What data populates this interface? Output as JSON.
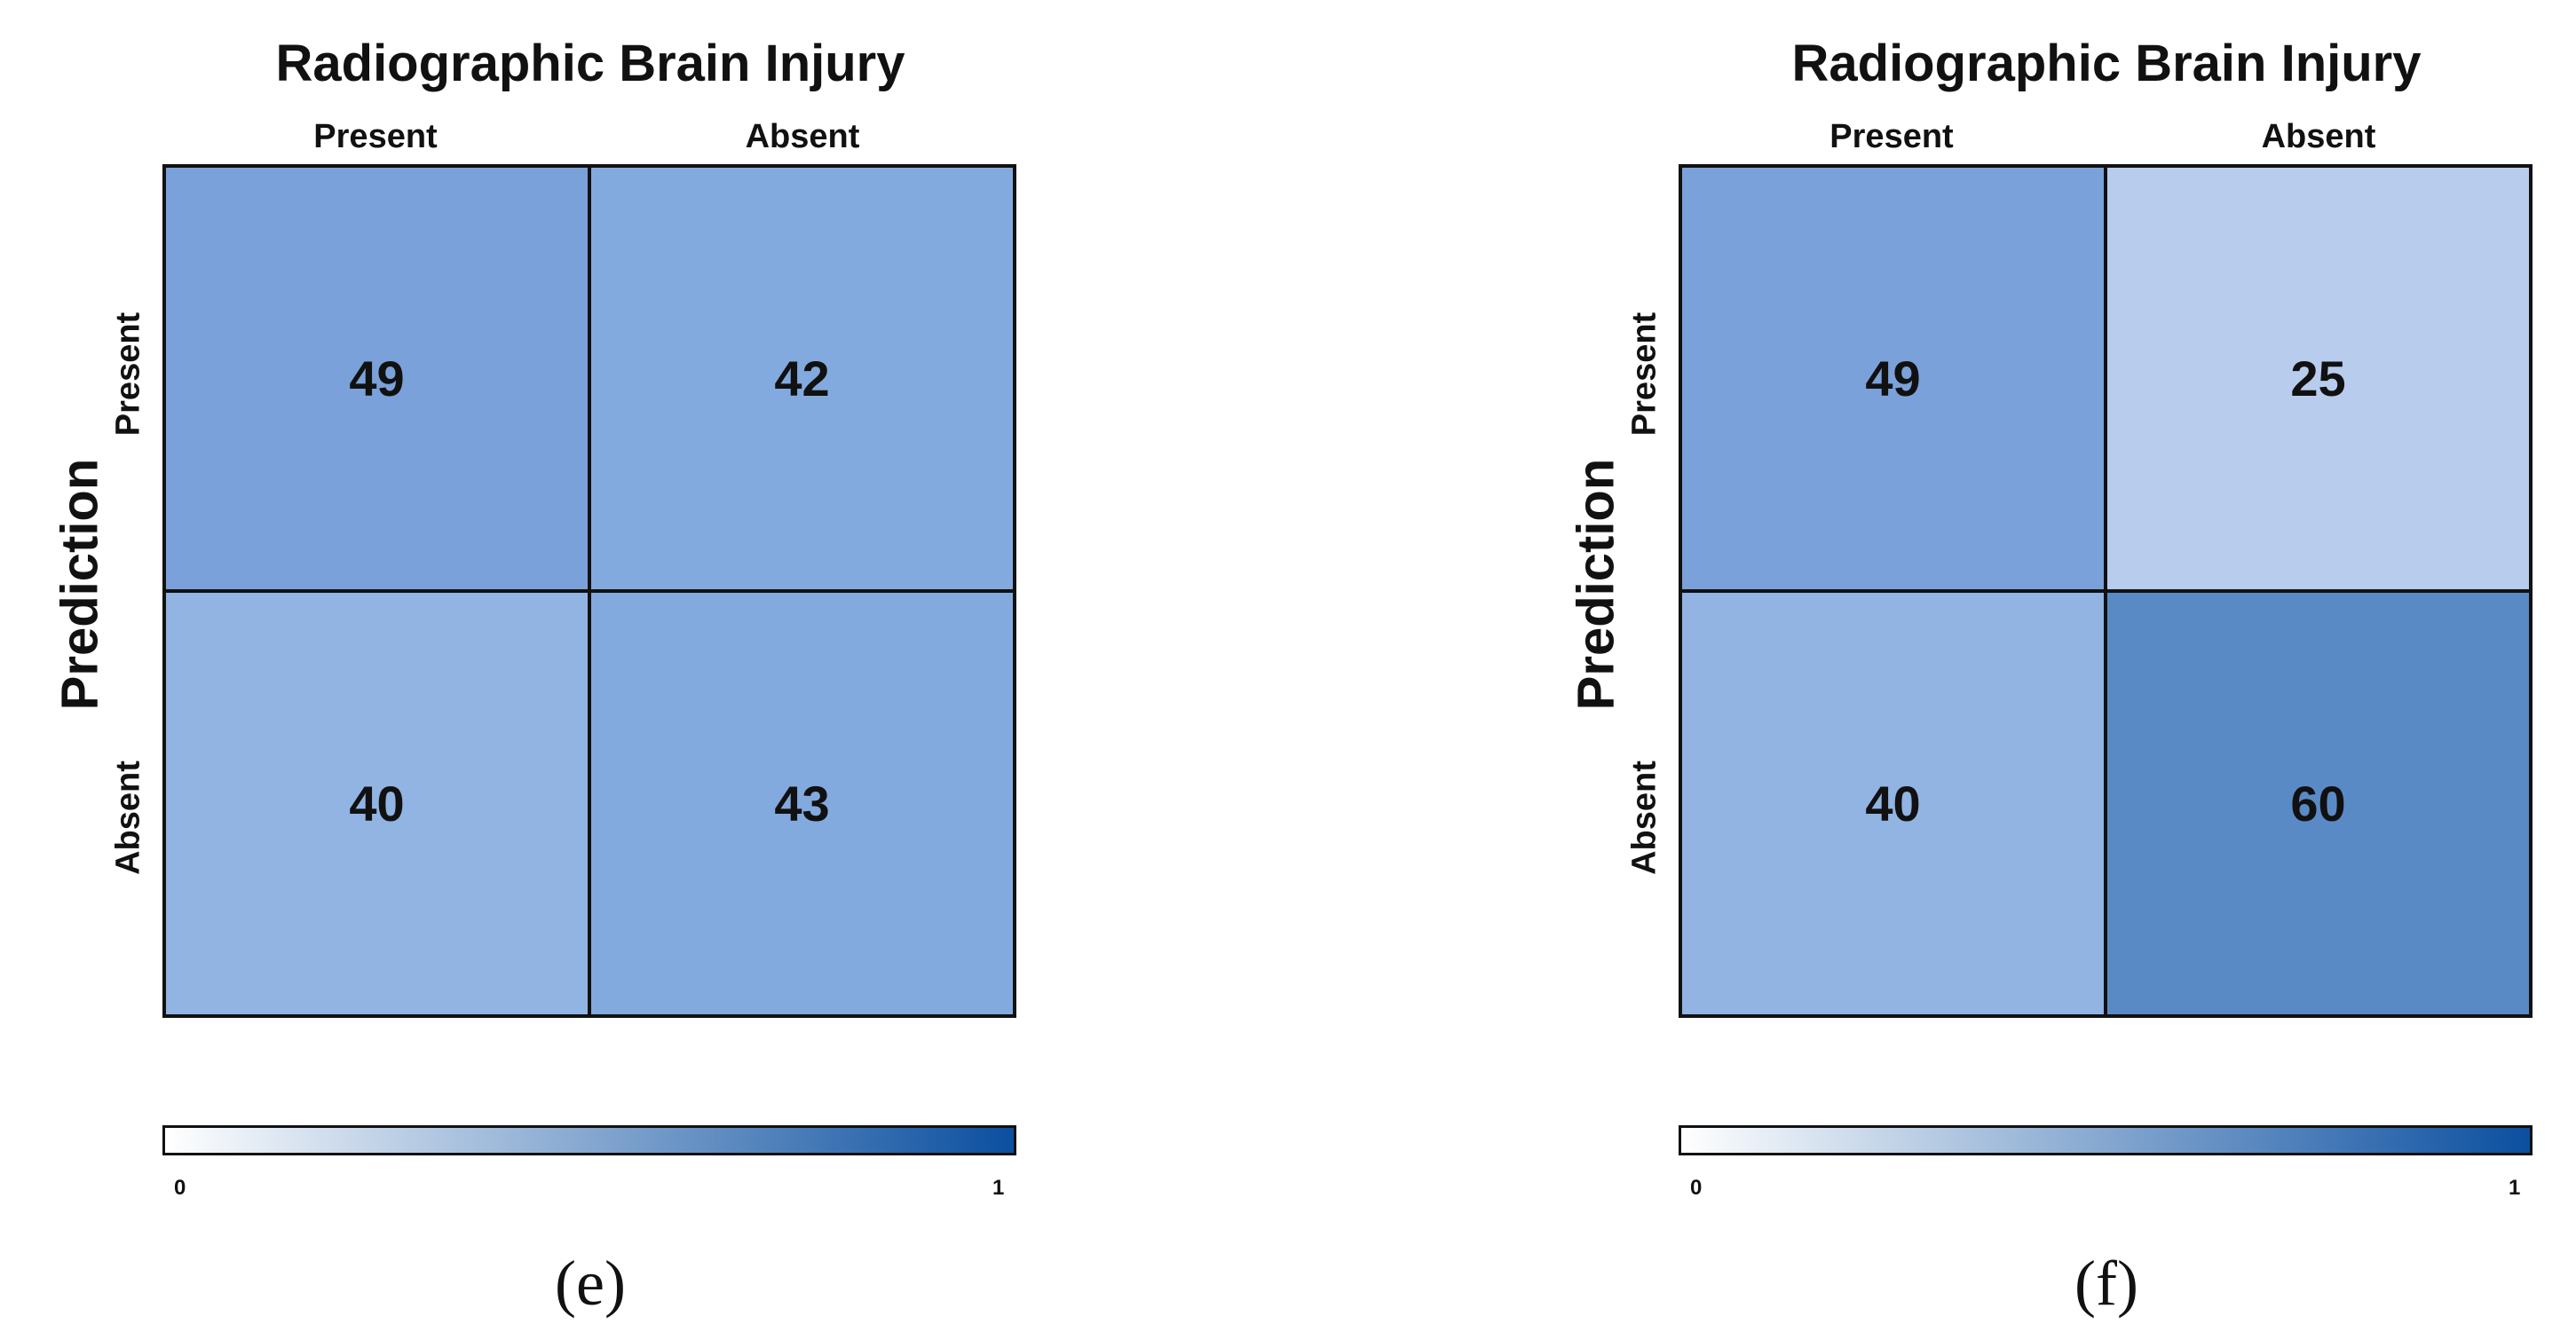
{
  "chart_data": [
    {
      "type": "heatmap",
      "title": "Radiographic Brain Injury",
      "ylabel": "Prediction",
      "x_categories": [
        "Present",
        "Absent"
      ],
      "y_categories": [
        "Present",
        "Absent"
      ],
      "values": [
        [
          49,
          42
        ],
        [
          40,
          43
        ]
      ],
      "cell_colors": [
        [
          "#7aa1d9",
          "#82aade"
        ],
        [
          "#91b4e3",
          "#82aade"
        ]
      ],
      "colorbar": {
        "min": "0",
        "max": "1",
        "color_low": "#ffffff",
        "color_high": "#0b4fa0"
      },
      "panel_label": "(e)"
    },
    {
      "type": "heatmap",
      "title": "Radiographic Brain Injury",
      "ylabel": "Prediction",
      "x_categories": [
        "Present",
        "Absent"
      ],
      "y_categories": [
        "Present",
        "Absent"
      ],
      "values": [
        [
          49,
          25
        ],
        [
          40,
          60
        ]
      ],
      "cell_colors": [
        [
          "#7aa1d9",
          "#b8cced"
        ],
        [
          "#91b4e3",
          "#5a8ac6"
        ]
      ],
      "colorbar": {
        "min": "0",
        "max": "1",
        "color_low": "#ffffff",
        "color_high": "#0b4fa0"
      },
      "panel_label": "(f)"
    }
  ]
}
